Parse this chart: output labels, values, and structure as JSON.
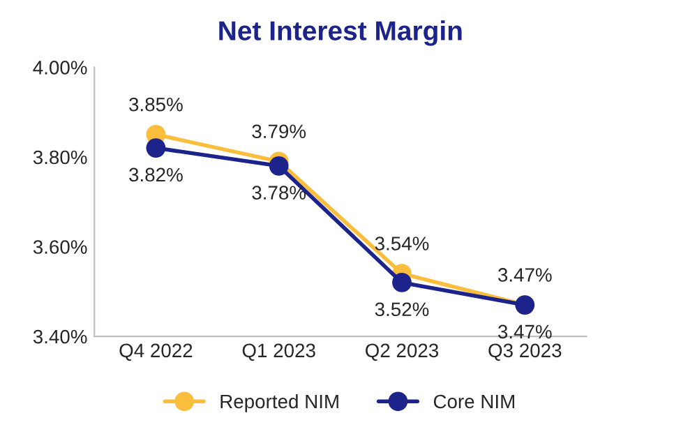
{
  "chart_data": {
    "type": "line",
    "title": "Net Interest Margin",
    "categories": [
      "Q4 2022",
      "Q1 2023",
      "Q2 2023",
      "Q3 2023"
    ],
    "series": [
      {
        "name": "Reported NIM",
        "color": "#fbbd3c",
        "values": [
          3.85,
          3.79,
          3.54,
          3.47
        ],
        "value_labels": [
          "3.85%",
          "3.79%",
          "3.54%",
          "3.47%"
        ]
      },
      {
        "name": "Core NIM",
        "color": "#1c248c",
        "values": [
          3.82,
          3.78,
          3.52,
          3.47
        ],
        "value_labels": [
          "3.82%",
          "3.78%",
          "3.52%",
          "3.47%"
        ]
      }
    ],
    "ylim": [
      3.4,
      4.0
    ],
    "yticks": [
      {
        "value": 3.4,
        "label": "3.40%"
      },
      {
        "value": 3.6,
        "label": "3.60%"
      },
      {
        "value": 3.8,
        "label": "3.80%"
      },
      {
        "value": 4.0,
        "label": "4.00%"
      }
    ],
    "grid": false,
    "legend": "bottom",
    "marker": "circle",
    "line_style": "solid"
  }
}
